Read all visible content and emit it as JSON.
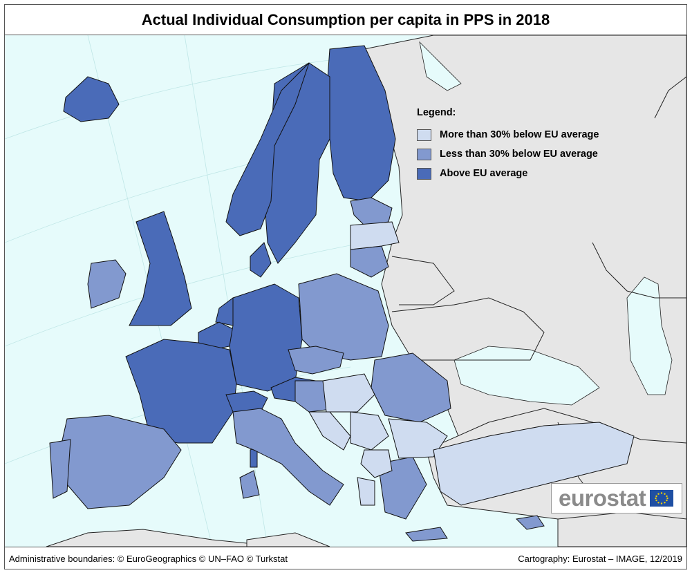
{
  "title": "Actual Individual Consumption per capita in PPS in 2018",
  "legend": {
    "title": "Legend:",
    "items": [
      {
        "label": "More than 30% below EU average",
        "color": "#cfdcf0"
      },
      {
        "label": "Less than 30% below EU average",
        "color": "#8299cf"
      },
      {
        "label": "Above EU average",
        "color": "#4a6bb8"
      }
    ]
  },
  "colors": {
    "sea": "#e6fbfb",
    "non_eu_land": "#e6e6e6"
  },
  "logo": {
    "text": "eurostat"
  },
  "footer": {
    "left": "Administrative boundaries: © EuroGeographics © UN–FAO © Turkstat",
    "right": "Cartography: Eurostat – IMAGE, 12/2019"
  }
}
